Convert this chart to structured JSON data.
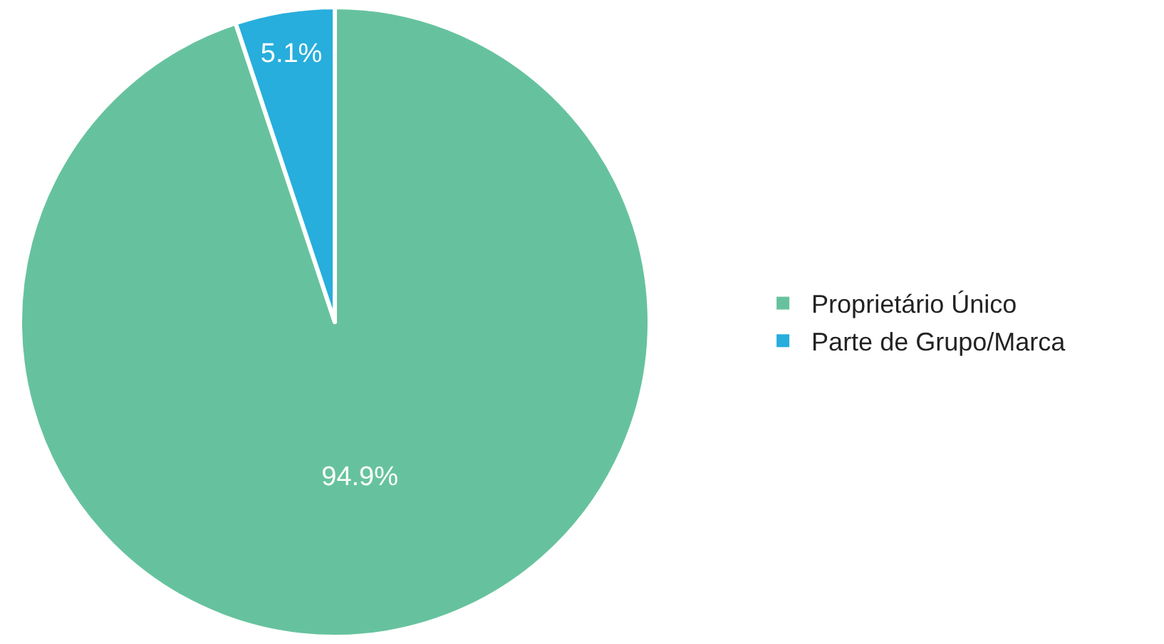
{
  "chart_data": {
    "type": "pie",
    "categories": [
      "Proprietário Único",
      "Parte de Grupo/Marca"
    ],
    "values": [
      94.9,
      5.1
    ],
    "colors": [
      "#66c29e",
      "#27aedc"
    ],
    "value_labels": [
      "94.9%",
      "5.1%"
    ],
    "legend": "right"
  }
}
